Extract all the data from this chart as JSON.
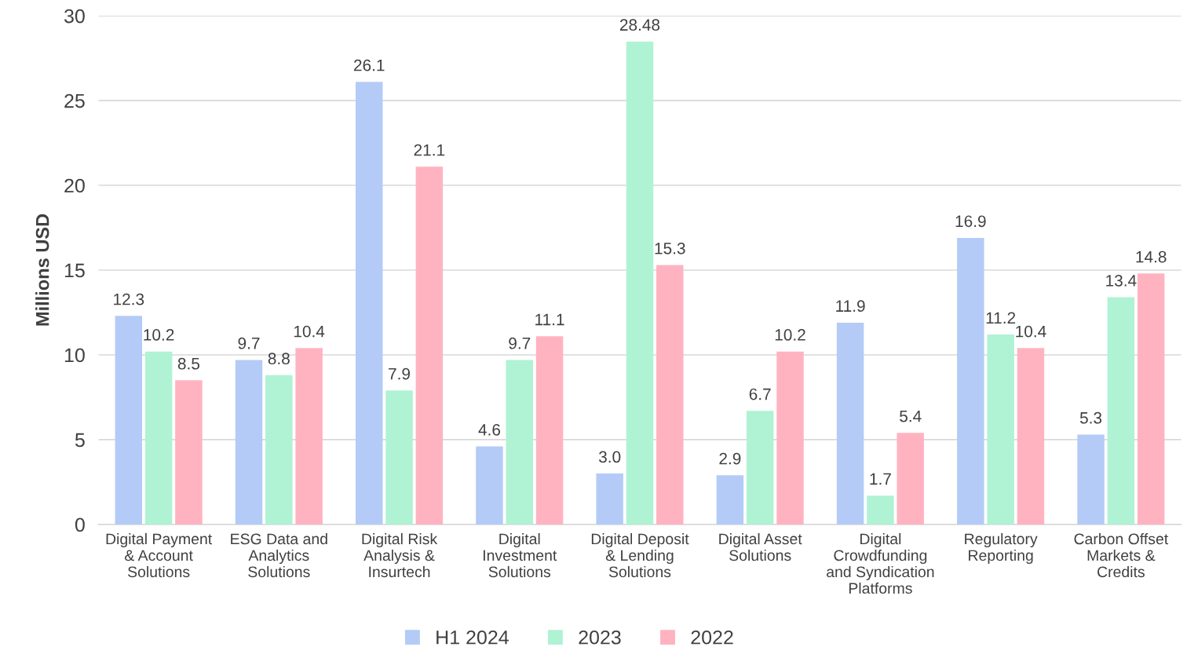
{
  "chart_data": {
    "type": "bar",
    "ylabel": "Millions USD",
    "categories": [
      "Digital Payment & Account Solutions",
      "ESG Data and Analytics Solutions",
      "Digital Risk Analysis & Insurtech",
      "Digital Investment Solutions",
      "Digital Deposit & Lending Solutions",
      "Digital Asset Solutions",
      "Digital Crowdfunding and Syndication Platforms",
      "Regulatory Reporting",
      "Carbon Offset Markets & Credits"
    ],
    "series": [
      {
        "name": "H1 2024",
        "color": "#b4cbf7",
        "values": [
          12.3,
          9.7,
          26.1,
          4.6,
          3.0,
          2.9,
          11.9,
          16.9,
          5.3
        ],
        "value_labels": [
          "12.3",
          "9.7",
          "26.1",
          "4.6",
          "3.0",
          "2.9",
          "11.9",
          "16.9",
          "5.3"
        ]
      },
      {
        "name": "2023",
        "color": "#b0f2d4",
        "values": [
          10.2,
          8.8,
          7.9,
          9.7,
          28.48,
          6.7,
          1.7,
          11.2,
          13.4
        ],
        "value_labels": [
          "10.2",
          "8.8",
          "7.9",
          "9.7",
          "28.48",
          "6.7",
          "1.7",
          "11.2",
          "13.4"
        ]
      },
      {
        "name": "2022",
        "color": "#ffb3c1",
        "values": [
          8.5,
          10.4,
          21.1,
          11.1,
          15.3,
          10.2,
          5.4,
          10.4,
          14.8
        ],
        "value_labels": [
          "8.5",
          "10.4",
          "21.1",
          "11.1",
          "15.3",
          "10.2",
          "5.4",
          "10.4",
          "14.8"
        ]
      }
    ],
    "ylim": [
      0,
      30
    ],
    "yticks": [
      0,
      5,
      10,
      15,
      20,
      25,
      30
    ],
    "grid": "y",
    "legend": "bottom"
  }
}
